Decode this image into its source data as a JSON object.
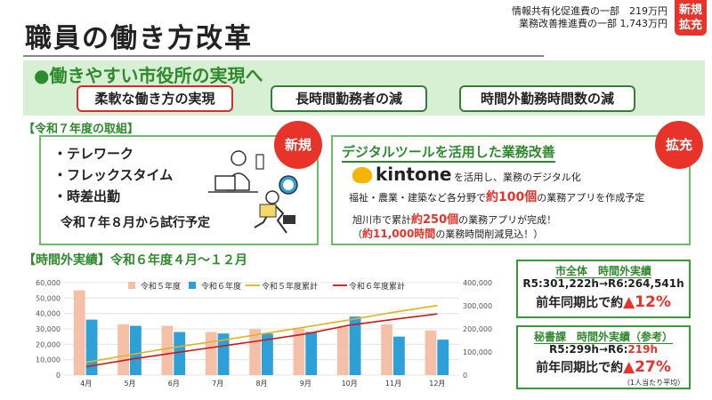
{
  "header": {
    "title": "職員の働き方改革",
    "budget_line1": "情報共有化促進費の一部　219万円",
    "budget_line2": "業務改善推進費の一部 1,743万円",
    "badge_line1": "新規",
    "badge_line2": "拡充"
  },
  "band": {
    "title": "●働きやすい市役所の実現へ",
    "pills": [
      "柔軟な働き方の実現",
      "長時間勤務者の減",
      "時間外勤務時間数の減"
    ]
  },
  "initiatives": {
    "label": "【令和７年度の取組】",
    "items": [
      "・テレワーク",
      "・フレックスタイム",
      "・時差出勤"
    ],
    "trial": "令和７年８月から試行予定",
    "badge": "新規"
  },
  "digital": {
    "title": "デジタルツールを活用した業務改善",
    "badge": "拡充",
    "logo": "kintone",
    "line1": "を活用し、業務のデジタル化",
    "line2_pre": "福祉・農業・建築など各分野で",
    "line2_em": "約100個",
    "line2_post": "の業務アプリを作成予定",
    "line3_pre": "旭川市で累計",
    "line3_em": "約250個",
    "line3_post": "の業務アプリが完成！",
    "line4_pre": "（",
    "line4_em": "約11,000時間",
    "line4_post": "の業務時間削減見込！）"
  },
  "overtime": {
    "label": "【時間外実績】令和６年度４月～１２月"
  },
  "stats": {
    "city": {
      "title": "市全体　時間外実績",
      "line": "R5:301,222h→R6:264,541h",
      "compare_pre": "前年同期比で約",
      "compare_em": "▲12%"
    },
    "secretary": {
      "title": "秘書課　時間外実績（参考）",
      "line_pre": "R5:299h→R6:",
      "line_em": "219h",
      "compare_pre": "前年同期比で約",
      "compare_em": "▲27%",
      "note": "（1人当たり平均）"
    }
  },
  "chart_data": {
    "type": "bar",
    "categories": [
      "4月",
      "5月",
      "6月",
      "7月",
      "8月",
      "9月",
      "10月",
      "11月",
      "12月"
    ],
    "series": [
      {
        "name": "令和５年度",
        "kind": "bar",
        "color": "#f4c0a8",
        "values": [
          55000,
          33000,
          32000,
          28000,
          30000,
          30000,
          31000,
          33000,
          29000
        ]
      },
      {
        "name": "令和６年度",
        "kind": "bar",
        "color": "#2ea0d8",
        "values": [
          36000,
          32000,
          28000,
          27000,
          27000,
          28000,
          38000,
          25000,
          23000
        ]
      },
      {
        "name": "令和５年度累計",
        "kind": "line",
        "axis": "right",
        "color": "#e2b320",
        "values": [
          55000,
          88000,
          120000,
          148000,
          178000,
          208000,
          239000,
          272000,
          301222
        ]
      },
      {
        "name": "令和６年度累計",
        "kind": "line",
        "axis": "right",
        "color": "#d01818",
        "values": [
          36000,
          68000,
          96000,
          123000,
          150000,
          178000,
          216000,
          241000,
          264541
        ]
      }
    ],
    "y_left": {
      "min": 0,
      "max": 60000,
      "ticks": [
        "0",
        "10,000",
        "20,000",
        "30,000",
        "40,000",
        "50,000",
        "60,000"
      ]
    },
    "y_right": {
      "min": 0,
      "max": 400000,
      "ticks": [
        "0",
        "100,000",
        "200,000",
        "300,000",
        "400,000"
      ]
    },
    "grid": true,
    "legend": "top"
  }
}
